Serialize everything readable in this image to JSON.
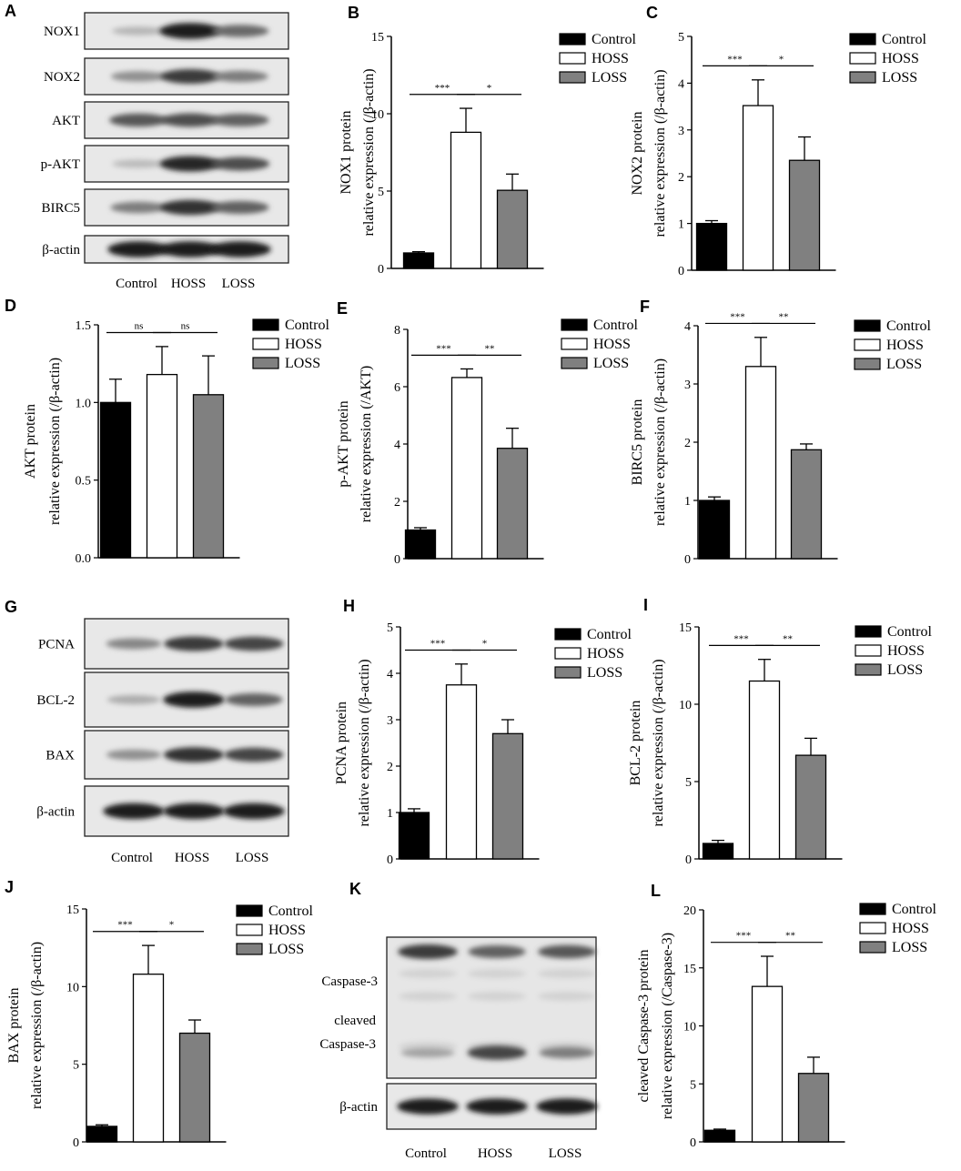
{
  "colors": {
    "Control": "#000000",
    "HOSS": "#ffffff",
    "LOSS": "#808080"
  },
  "blot_panels": [
    {
      "panel_label": "A",
      "lanes": [
        "Control",
        "HOSS",
        "LOSS"
      ],
      "bands": [
        {
          "label": "NOX1",
          "intensity": [
            0.15,
            0.95,
            0.55
          ]
        },
        {
          "label": "NOX2",
          "intensity": [
            0.35,
            0.8,
            0.45
          ]
        },
        {
          "label": "AKT",
          "intensity": [
            0.65,
            0.7,
            0.6
          ]
        },
        {
          "label": "p-AKT",
          "intensity": [
            0.12,
            0.9,
            0.7
          ]
        },
        {
          "label": "BIRC5",
          "intensity": [
            0.45,
            0.85,
            0.6
          ]
        },
        {
          "label": "β-actin",
          "intensity": [
            0.95,
            0.95,
            0.95
          ]
        }
      ]
    },
    {
      "panel_label": "G",
      "lanes": [
        "Control",
        "HOSS",
        "LOSS"
      ],
      "bands": [
        {
          "label": "PCNA",
          "intensity": [
            0.4,
            0.8,
            0.75
          ]
        },
        {
          "label": "BCL-2",
          "intensity": [
            0.2,
            0.95,
            0.6
          ]
        },
        {
          "label": "BAX",
          "intensity": [
            0.35,
            0.85,
            0.75
          ]
        },
        {
          "label": "β-actin",
          "intensity": [
            0.95,
            0.95,
            0.95
          ]
        }
      ]
    },
    {
      "panel_label": "K",
      "lanes": [
        "Control",
        "HOSS",
        "LOSS"
      ],
      "bands": [
        {
          "label": "Caspase-3",
          "intensity": [
            0.8,
            0.6,
            0.65
          ]
        },
        {
          "label": "cleaved Caspase-3",
          "label_lines": [
            "cleaved",
            "Caspase-3"
          ],
          "intensity": [
            0.25,
            0.75,
            0.45
          ]
        },
        {
          "label": "β-actin",
          "intensity": [
            0.95,
            0.95,
            0.95
          ]
        }
      ]
    }
  ],
  "chart_data": [
    {
      "panel_label": "B",
      "type": "bar",
      "categories": [
        "Control",
        "HOSS",
        "LOSS"
      ],
      "values": [
        1.0,
        8.8,
        5.05
      ],
      "errors": [
        0.08,
        1.55,
        1.05
      ],
      "ylim": [
        0,
        15
      ],
      "yticks": [
        0,
        5,
        10,
        15
      ],
      "ylabel_lines": [
        "NOX1 protein",
        "relative expression (/β-actin)"
      ],
      "significance": [
        {
          "pair": [
            0,
            1
          ],
          "label": "***"
        },
        {
          "pair": [
            1,
            2
          ],
          "label": "*"
        }
      ],
      "legend": [
        "Control",
        "HOSS",
        "LOSS"
      ],
      "legend_position": "top-right"
    },
    {
      "panel_label": "C",
      "type": "bar",
      "categories": [
        "Control",
        "HOSS",
        "LOSS"
      ],
      "values": [
        1.0,
        3.52,
        2.35
      ],
      "errors": [
        0.06,
        0.55,
        0.5
      ],
      "ylim": [
        0,
        5
      ],
      "yticks": [
        0,
        1,
        2,
        3,
        4,
        5
      ],
      "ylabel_lines": [
        "NOX2 protein",
        "relative expression (/β-actin)"
      ],
      "significance": [
        {
          "pair": [
            0,
            1
          ],
          "label": "***"
        },
        {
          "pair": [
            1,
            2
          ],
          "label": "*"
        }
      ],
      "legend": [
        "Control",
        "HOSS",
        "LOSS"
      ],
      "legend_position": "top-right"
    },
    {
      "panel_label": "D",
      "type": "bar",
      "categories": [
        "Control",
        "HOSS",
        "LOSS"
      ],
      "values": [
        1.0,
        1.18,
        1.05
      ],
      "errors": [
        0.15,
        0.18,
        0.25
      ],
      "ylim": [
        0,
        1.5
      ],
      "yticks": [
        0.0,
        0.5,
        1.0,
        1.5
      ],
      "ylabel_lines": [
        "AKT protein",
        "relative expression (/β-actin)"
      ],
      "significance": [
        {
          "pair": [
            0,
            1
          ],
          "label": "ns"
        },
        {
          "pair": [
            1,
            2
          ],
          "label": "ns"
        }
      ],
      "legend": [
        "Control",
        "HOSS",
        "LOSS"
      ],
      "legend_position": "top-right"
    },
    {
      "panel_label": "E",
      "type": "bar",
      "categories": [
        "Control",
        "HOSS",
        "LOSS"
      ],
      "values": [
        1.0,
        6.32,
        3.85
      ],
      "errors": [
        0.08,
        0.3,
        0.7
      ],
      "ylim": [
        0,
        8
      ],
      "yticks": [
        0,
        2,
        4,
        6,
        8
      ],
      "ylabel_lines": [
        "p-AKT protein",
        "relative expression (/AKT)"
      ],
      "significance": [
        {
          "pair": [
            0,
            1
          ],
          "label": "***"
        },
        {
          "pair": [
            1,
            2
          ],
          "label": "**"
        }
      ],
      "legend": [
        "Control",
        "HOSS",
        "LOSS"
      ],
      "legend_position": "top-right"
    },
    {
      "panel_label": "F",
      "type": "bar",
      "categories": [
        "Control",
        "HOSS",
        "LOSS"
      ],
      "values": [
        1.0,
        3.3,
        1.87
      ],
      "errors": [
        0.06,
        0.5,
        0.1
      ],
      "ylim": [
        0,
        4
      ],
      "yticks": [
        0,
        1,
        2,
        3,
        4
      ],
      "ylabel_lines": [
        "BIRC5  protein",
        "relative expression (/β-actin)"
      ],
      "significance": [
        {
          "pair": [
            0,
            1
          ],
          "label": "***"
        },
        {
          "pair": [
            1,
            2
          ],
          "label": "**"
        }
      ],
      "legend": [
        "Control",
        "HOSS",
        "LOSS"
      ],
      "legend_position": "top-right"
    },
    {
      "panel_label": "H",
      "type": "bar",
      "categories": [
        "Control",
        "HOSS",
        "LOSS"
      ],
      "values": [
        1.0,
        3.75,
        2.7
      ],
      "errors": [
        0.08,
        0.45,
        0.3
      ],
      "ylim": [
        0,
        5
      ],
      "yticks": [
        0,
        1,
        2,
        3,
        4,
        5
      ],
      "ylabel_lines": [
        "PCNA protein",
        "relative expression (/β-actin)"
      ],
      "significance": [
        {
          "pair": [
            0,
            1
          ],
          "label": "***"
        },
        {
          "pair": [
            1,
            2
          ],
          "label": "*"
        }
      ],
      "legend": [
        "Control",
        "HOSS",
        "LOSS"
      ],
      "legend_position": "top-right"
    },
    {
      "panel_label": "I",
      "type": "bar",
      "categories": [
        "Control",
        "HOSS",
        "LOSS"
      ],
      "values": [
        1.0,
        11.5,
        6.7
      ],
      "errors": [
        0.2,
        1.4,
        1.1
      ],
      "ylim": [
        0,
        15
      ],
      "yticks": [
        0,
        5,
        10,
        15
      ],
      "ylabel_lines": [
        "BCL-2 protein",
        "relative expression (/β-actin)"
      ],
      "significance": [
        {
          "pair": [
            0,
            1
          ],
          "label": "***"
        },
        {
          "pair": [
            1,
            2
          ],
          "label": "**"
        }
      ],
      "legend": [
        "Control",
        "HOSS",
        "LOSS"
      ],
      "legend_position": "top-right"
    },
    {
      "panel_label": "J",
      "type": "bar",
      "categories": [
        "Control",
        "HOSS",
        "LOSS"
      ],
      "values": [
        1.0,
        10.8,
        7.0
      ],
      "errors": [
        0.1,
        1.85,
        0.85
      ],
      "ylim": [
        0,
        15
      ],
      "yticks": [
        0,
        5,
        10,
        15
      ],
      "ylabel_lines": [
        "BAX protein",
        "relative expression (/β-actin)"
      ],
      "significance": [
        {
          "pair": [
            0,
            1
          ],
          "label": "***"
        },
        {
          "pair": [
            1,
            2
          ],
          "label": "*"
        }
      ],
      "legend": [
        "Control",
        "HOSS",
        "LOSS"
      ],
      "legend_position": "top-right"
    },
    {
      "panel_label": "L",
      "type": "bar",
      "categories": [
        "Control",
        "HOSS",
        "LOSS"
      ],
      "values": [
        1.0,
        13.4,
        5.9
      ],
      "errors": [
        0.1,
        2.6,
        1.4
      ],
      "ylim": [
        0,
        20
      ],
      "yticks": [
        0,
        5,
        10,
        15,
        20
      ],
      "ylabel_lines": [
        "cleaved Caspase-3 protein",
        "relative expression (/Caspase-3)"
      ],
      "significance": [
        {
          "pair": [
            0,
            1
          ],
          "label": "***"
        },
        {
          "pair": [
            1,
            2
          ],
          "label": "**"
        }
      ],
      "legend": [
        "Control",
        "HOSS",
        "LOSS"
      ],
      "legend_position": "top-right"
    }
  ]
}
